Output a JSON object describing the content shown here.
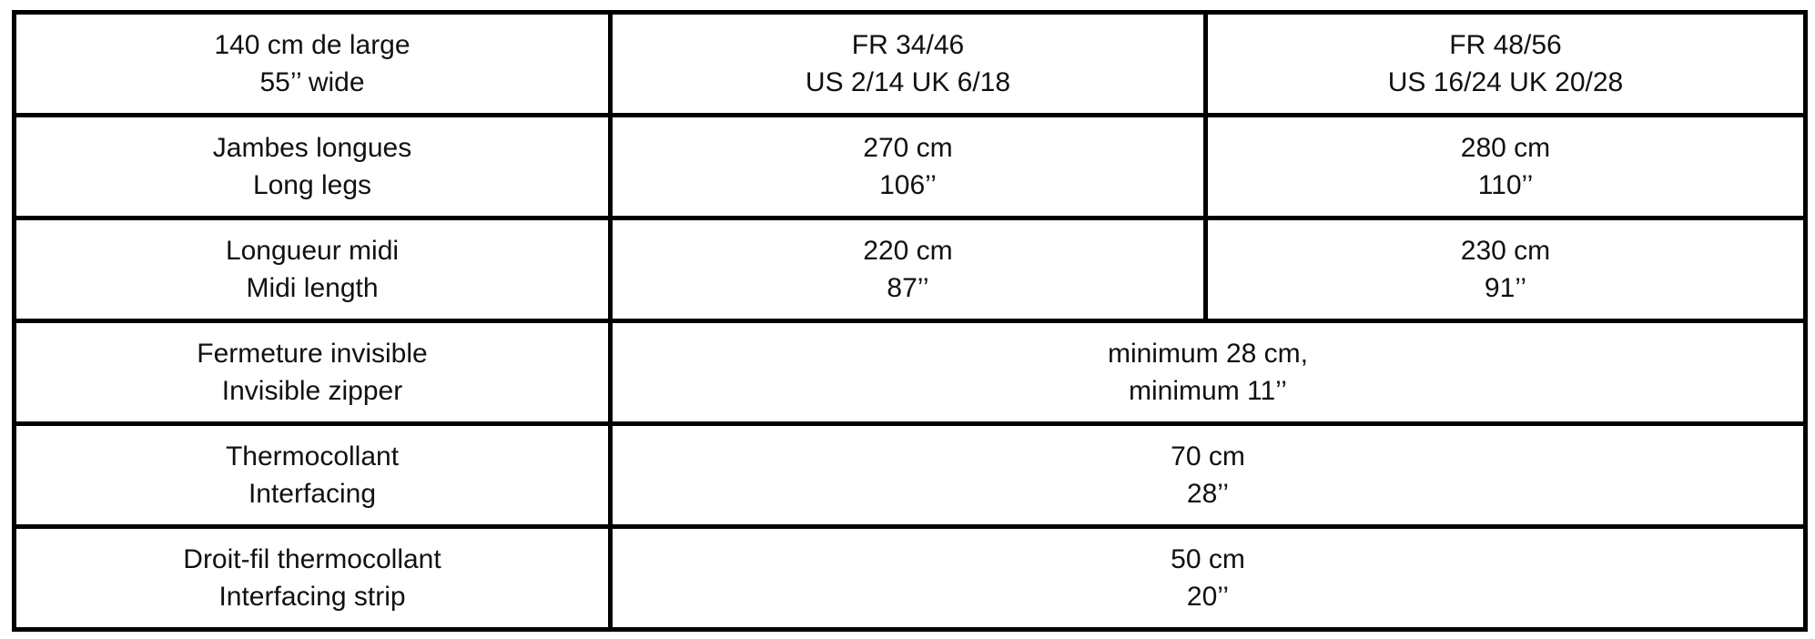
{
  "rows": [
    {
      "label": [
        "140 cm de large",
        "55’’ wide"
      ],
      "cells": [
        [
          "FR 34/46",
          "US 2/14 UK 6/18"
        ],
        [
          "FR 48/56",
          "US 16/24 UK 20/28"
        ]
      ]
    },
    {
      "label": [
        "Jambes longues",
        "Long legs"
      ],
      "cells": [
        [
          "270 cm",
          "106’’"
        ],
        [
          "280 cm",
          "110’’"
        ]
      ]
    },
    {
      "label": [
        "Longueur midi",
        "Midi length"
      ],
      "cells": [
        [
          "220 cm",
          "87’’"
        ],
        [
          "230 cm",
          "91’’"
        ]
      ]
    },
    {
      "label": [
        "Fermeture invisible",
        "Invisible zipper"
      ],
      "cells": [
        [
          "minimum 28 cm,",
          "minimum 11’’"
        ]
      ]
    },
    {
      "label": [
        "Thermocollant",
        "Interfacing"
      ],
      "cells": [
        [
          "70 cm",
          "28’’"
        ]
      ]
    },
    {
      "label": [
        "Droit-fil thermocollant",
        "Interfacing strip"
      ],
      "cells": [
        [
          "50 cm",
          "20’’"
        ]
      ]
    }
  ]
}
